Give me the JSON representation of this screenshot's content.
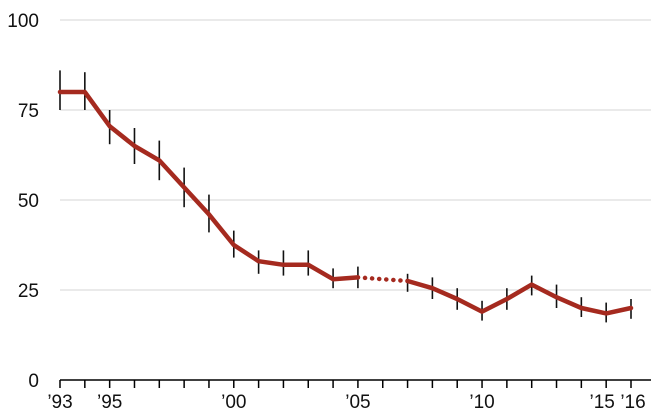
{
  "chart_data": {
    "type": "line",
    "title": "",
    "xlabel": "",
    "ylabel": "",
    "ylim": [
      0,
      100
    ],
    "xlim": [
      1993,
      2016
    ],
    "yticks": [
      0,
      25,
      50,
      75,
      100
    ],
    "ytick_labels": [
      "0",
      "25",
      "50",
      "75",
      "100"
    ],
    "xticks": [
      1993,
      1994,
      1995,
      1996,
      1997,
      1998,
      1999,
      2000,
      2001,
      2002,
      2003,
      2004,
      2005,
      2006,
      2007,
      2008,
      2009,
      2010,
      2011,
      2012,
      2013,
      2014,
      2015,
      2016
    ],
    "xtick_labels": [
      {
        "x": 1993,
        "label": "’93"
      },
      {
        "x": 1995,
        "label": "’95"
      },
      {
        "x": 2000,
        "label": "’00"
      },
      {
        "x": 2005,
        "label": "’05"
      },
      {
        "x": 2010,
        "label": "’10"
      },
      {
        "x": 2015,
        "label": "’15"
      },
      {
        "x": 2016,
        "label": "’16"
      }
    ],
    "grid": true,
    "color": "#a52a1f",
    "segments": [
      {
        "style": "solid",
        "x": [
          1993,
          1994,
          1995,
          1996,
          1997,
          1998,
          1999,
          2000,
          2001,
          2002,
          2003,
          2004,
          2005
        ],
        "y": [
          80,
          80,
          70.5,
          65,
          61,
          53.5,
          46,
          37.5,
          33,
          32,
          32,
          28,
          28.5
        ]
      },
      {
        "style": "dotted",
        "x": [
          2005,
          2007
        ],
        "y": [
          28.5,
          27.5
        ]
      },
      {
        "style": "solid",
        "x": [
          2007,
          2008,
          2009,
          2010,
          2011,
          2012,
          2013,
          2014,
          2015,
          2016
        ],
        "y": [
          27.5,
          25.5,
          22.5,
          19,
          22.5,
          26.5,
          23,
          20,
          18.5,
          20
        ]
      }
    ],
    "points": [
      {
        "x": 1993,
        "y": 80,
        "lo": 75,
        "hi": 86
      },
      {
        "x": 1994,
        "y": 80,
        "lo": 75,
        "hi": 85.5
      },
      {
        "x": 1995,
        "y": 70.5,
        "lo": 65.5,
        "hi": 75
      },
      {
        "x": 1996,
        "y": 65,
        "lo": 60,
        "hi": 70
      },
      {
        "x": 1997,
        "y": 61,
        "lo": 55.5,
        "hi": 66.5
      },
      {
        "x": 1998,
        "y": 53.5,
        "lo": 48,
        "hi": 59
      },
      {
        "x": 1999,
        "y": 46,
        "lo": 41,
        "hi": 51.5
      },
      {
        "x": 2000,
        "y": 37.5,
        "lo": 34,
        "hi": 41.5
      },
      {
        "x": 2001,
        "y": 33,
        "lo": 29.5,
        "hi": 36
      },
      {
        "x": 2002,
        "y": 32,
        "lo": 29,
        "hi": 36
      },
      {
        "x": 2003,
        "y": 32,
        "lo": 29,
        "hi": 36
      },
      {
        "x": 2004,
        "y": 28,
        "lo": 25.5,
        "hi": 31
      },
      {
        "x": 2005,
        "y": 28.5,
        "lo": 25.5,
        "hi": 31.5
      },
      {
        "x": 2007,
        "y": 27.5,
        "lo": 24.5,
        "hi": 29.5
      },
      {
        "x": 2008,
        "y": 25.5,
        "lo": 22.5,
        "hi": 28.5
      },
      {
        "x": 2009,
        "y": 22.5,
        "lo": 19.5,
        "hi": 25.5
      },
      {
        "x": 2010,
        "y": 19,
        "lo": 16.5,
        "hi": 22
      },
      {
        "x": 2011,
        "y": 22.5,
        "lo": 19.5,
        "hi": 25.5
      },
      {
        "x": 2012,
        "y": 26.5,
        "lo": 23.5,
        "hi": 29
      },
      {
        "x": 2013,
        "y": 23,
        "lo": 20,
        "hi": 26.5
      },
      {
        "x": 2014,
        "y": 20,
        "lo": 17.5,
        "hi": 23
      },
      {
        "x": 2015,
        "y": 18.5,
        "lo": 16,
        "hi": 21.5
      },
      {
        "x": 2016,
        "y": 20,
        "lo": 17,
        "hi": 22.5
      }
    ]
  }
}
